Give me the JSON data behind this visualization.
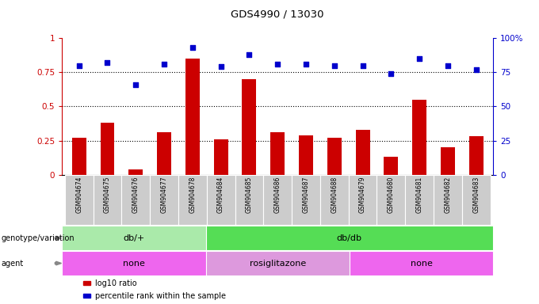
{
  "title": "GDS4990 / 13030",
  "samples": [
    "GSM904674",
    "GSM904675",
    "GSM904676",
    "GSM904677",
    "GSM904678",
    "GSM904684",
    "GSM904685",
    "GSM904686",
    "GSM904687",
    "GSM904688",
    "GSM904679",
    "GSM904680",
    "GSM904681",
    "GSM904682",
    "GSM904683"
  ],
  "log10_ratio": [
    0.27,
    0.38,
    0.04,
    0.31,
    0.85,
    0.26,
    0.7,
    0.31,
    0.29,
    0.27,
    0.33,
    0.13,
    0.55,
    0.2,
    0.28
  ],
  "percentile_rank": [
    0.8,
    0.82,
    0.66,
    0.81,
    0.93,
    0.79,
    0.88,
    0.81,
    0.81,
    0.8,
    0.8,
    0.74,
    0.85,
    0.8,
    0.77
  ],
  "bar_color": "#cc0000",
  "dot_color": "#0000cc",
  "genotype_groups": [
    {
      "label": "db/+",
      "start": 0,
      "end": 4,
      "color": "#aaeaaa"
    },
    {
      "label": "db/db",
      "start": 5,
      "end": 14,
      "color": "#55dd55"
    }
  ],
  "agent_groups": [
    {
      "label": "none",
      "start": 0,
      "end": 4,
      "color": "#ee66ee"
    },
    {
      "label": "rosiglitazone",
      "start": 5,
      "end": 9,
      "color": "#dd99dd"
    },
    {
      "label": "none",
      "start": 10,
      "end": 14,
      "color": "#ee66ee"
    }
  ],
  "yticks_left": [
    0,
    0.25,
    0.5,
    0.75,
    1.0
  ],
  "ytick_labels_left": [
    "0",
    "0.25",
    "0.5",
    "0.75",
    "1"
  ],
  "ytick_labels_right": [
    "0",
    "25",
    "50",
    "75",
    "100%"
  ],
  "dotted_lines": [
    0.25,
    0.5,
    0.75
  ],
  "legend_items": [
    {
      "color": "#cc0000",
      "label": "log10 ratio"
    },
    {
      "color": "#0000cc",
      "label": "percentile rank within the sample"
    }
  ],
  "row_label_genotype": "genotype/variation",
  "row_label_agent": "agent",
  "background_color": "#ffffff",
  "tick_bg_color": "#cccccc"
}
